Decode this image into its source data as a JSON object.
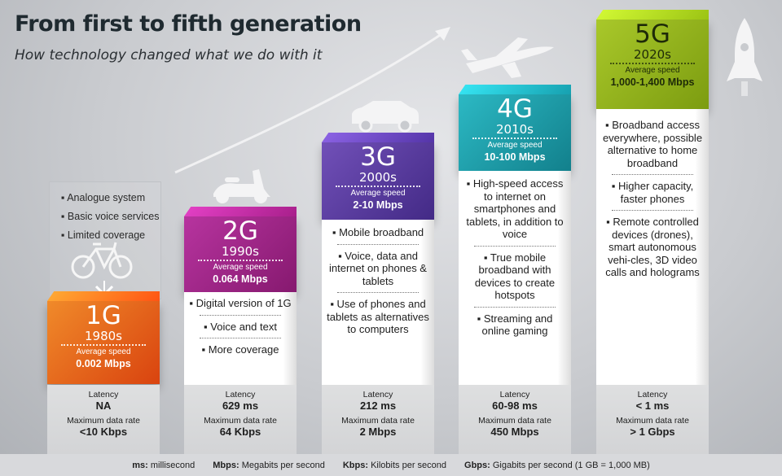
{
  "title": "From first to fifth generation",
  "subtitle": "How technology changed what we do with it",
  "generations": [
    {
      "name": "1G",
      "year": "1980s",
      "speed_label": "Average speed",
      "speed": "0.002 Mbps",
      "color": "#e8601a",
      "icon": "bicycle-icon",
      "features": [
        "Analogue system",
        "Basic voice services",
        "Limited coverage"
      ],
      "latency_label": "Latency",
      "latency": "NA",
      "rate_label": "Maximum data rate",
      "rate": "<10 Kbps"
    },
    {
      "name": "2G",
      "year": "1990s",
      "speed_label": "Average speed",
      "speed": "0.064 Mbps",
      "color": "#9c2a86",
      "icon": "scooter-icon",
      "features": [
        "Digital version of 1G",
        "Voice and  text",
        "More coverage"
      ],
      "latency_label": "Latency",
      "latency": "629 ms",
      "rate_label": "Maximum data rate",
      "rate": "64 Kbps"
    },
    {
      "name": "3G",
      "year": "2000s",
      "speed_label": "Average speed",
      "speed": "2-10 Mbps",
      "color": "#5a3a9c",
      "icon": "car-icon",
      "features": [
        "Mobile broadband",
        "Voice, data and internet on phones & tablets",
        "Use of phones and tablets as alternatives to computers"
      ],
      "latency_label": "Latency",
      "latency": "212 ms",
      "rate_label": "Maximum data rate",
      "rate": "2 Mbps"
    },
    {
      "name": "4G",
      "year": "2010s",
      "speed_label": "Average speed",
      "speed": "10-100 Mbps",
      "color": "#1a9aa6",
      "icon": "airplane-icon",
      "features": [
        "High-speed access to internet on smartphones and tablets, in addition to voice",
        "True mobile broadband with devices to create hotspots",
        "Streaming and online gaming"
      ],
      "latency_label": "Latency",
      "latency": "60-98 ms",
      "rate_label": "Maximum data rate",
      "rate": "450 Mbps"
    },
    {
      "name": "5G",
      "year": "2020s",
      "speed_label": "Average speed",
      "speed": "1,000-1,400 Mbps",
      "color": "#93b41a",
      "icon": "rocket-icon",
      "features": [
        "Broadband access everywhere, possible alternative to home broadband",
        "Higher capacity, faster phones",
        "Remote controlled devices (drones), smart autonomous vehi-cles, 3D video calls and holograms"
      ],
      "latency_label": "Latency",
      "latency": "< 1 ms",
      "rate_label": "Maximum data rate",
      "rate": "> 1 Gbps"
    }
  ],
  "legend": [
    {
      "abbr": "ms:",
      "text": "millisecond"
    },
    {
      "abbr": "Mbps:",
      "text": "Megabits per second"
    },
    {
      "abbr": "Kbps:",
      "text": "Kilobits per second"
    },
    {
      "abbr": "Gbps:",
      "text": "Gigabits per second (1 GB = 1,000 MB)"
    }
  ]
}
